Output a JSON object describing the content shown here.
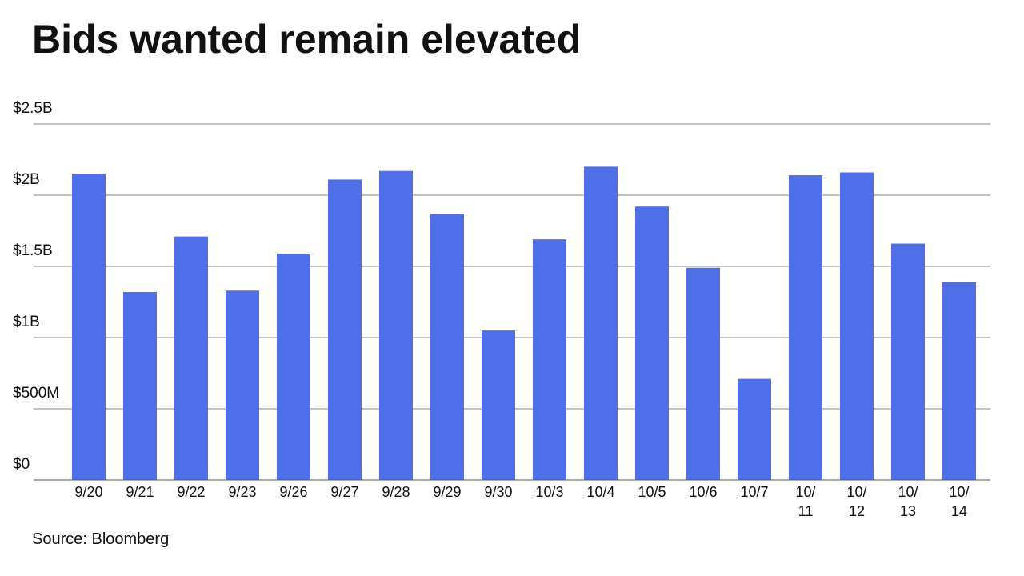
{
  "chart_data": {
    "type": "bar",
    "title": "Bids wanted remain elevated",
    "source": "Source: Bloomberg",
    "categories": [
      "9/20",
      "9/21",
      "9/22",
      "9/23",
      "9/26",
      "9/27",
      "9/28",
      "9/29",
      "9/30",
      "10/3",
      "10/4",
      "10/5",
      "10/6",
      "10/7",
      "10/11",
      "10/12",
      "10/13",
      "10/14"
    ],
    "values": [
      2150000000,
      1320000000,
      1710000000,
      1330000000,
      1590000000,
      2110000000,
      2170000000,
      1870000000,
      1050000000,
      1690000000,
      2200000000,
      1920000000,
      1490000000,
      710000000,
      2140000000,
      2160000000,
      1660000000,
      1390000000
    ],
    "color": "#4f6fe8",
    "ylim": [
      0,
      2500000000
    ],
    "yticks": [
      {
        "value": 0,
        "label": "$0"
      },
      {
        "value": 500000000,
        "label": "$500M"
      },
      {
        "value": 1000000000,
        "label": "$1B"
      },
      {
        "value": 1500000000,
        "label": "$1.5B"
      },
      {
        "value": 2000000000,
        "label": "$2B"
      },
      {
        "value": 2500000000,
        "label": "$2.5B"
      }
    ],
    "grid": true
  }
}
